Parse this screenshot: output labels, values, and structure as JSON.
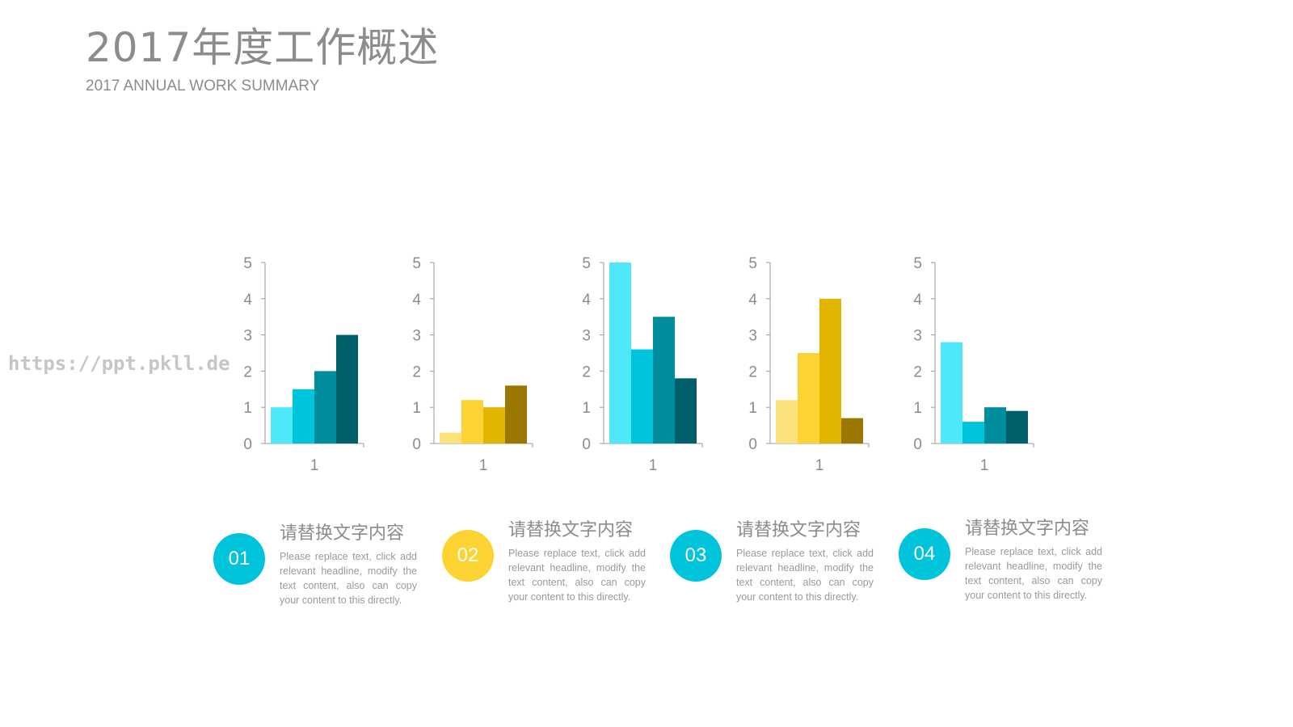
{
  "header": {
    "title": "2017年度工作概述",
    "subtitle": "2017 ANNUAL WORK SUMMARY"
  },
  "watermark": "https://ppt.pkll.de",
  "colors": {
    "cyan": [
      "#4ee8fa",
      "#00c3dc",
      "#008e9e",
      "#005f6b"
    ],
    "gold": [
      "#fde17a",
      "#fdd233",
      "#e2b600",
      "#9a7800"
    ],
    "text": "#8c8c8c",
    "axis": "#999999"
  },
  "chart_data": [
    {
      "type": "bar",
      "categories": [
        "1"
      ],
      "ylim": [
        0,
        5
      ],
      "yticks": [
        0,
        1,
        2,
        3,
        4,
        5
      ],
      "palette": "cyan",
      "series": [
        {
          "values": [
            1
          ]
        },
        {
          "values": [
            1.5
          ]
        },
        {
          "values": [
            2
          ]
        },
        {
          "values": [
            3
          ]
        }
      ]
    },
    {
      "type": "bar",
      "categories": [
        "1"
      ],
      "ylim": [
        0,
        5
      ],
      "yticks": [
        0,
        1,
        2,
        3,
        4,
        5
      ],
      "palette": "gold",
      "series": [
        {
          "values": [
            0.3
          ]
        },
        {
          "values": [
            1.2
          ]
        },
        {
          "values": [
            1
          ]
        },
        {
          "values": [
            1.6
          ]
        }
      ]
    },
    {
      "type": "bar",
      "categories": [
        "1"
      ],
      "ylim": [
        0,
        5
      ],
      "yticks": [
        0,
        1,
        2,
        3,
        4,
        5
      ],
      "palette": "cyan",
      "series": [
        {
          "values": [
            5
          ]
        },
        {
          "values": [
            2.6
          ]
        },
        {
          "values": [
            3.5
          ]
        },
        {
          "values": [
            1.8
          ]
        }
      ]
    },
    {
      "type": "bar",
      "categories": [
        "1"
      ],
      "ylim": [
        0,
        5
      ],
      "yticks": [
        0,
        1,
        2,
        3,
        4,
        5
      ],
      "palette": "gold",
      "series": [
        {
          "values": [
            1.2
          ]
        },
        {
          "values": [
            2.5
          ]
        },
        {
          "values": [
            4
          ]
        },
        {
          "values": [
            0.7
          ]
        }
      ]
    },
    {
      "type": "bar",
      "categories": [
        "1"
      ],
      "ylim": [
        0,
        5
      ],
      "yticks": [
        0,
        1,
        2,
        3,
        4,
        5
      ],
      "palette": "cyan",
      "series": [
        {
          "values": [
            2.8
          ]
        },
        {
          "values": [
            0.6
          ]
        },
        {
          "values": [
            1
          ]
        },
        {
          "values": [
            0.9
          ]
        }
      ]
    }
  ],
  "items": [
    {
      "number": "01",
      "color": "#00c3dc",
      "heading": "请替换文字内容",
      "body": "Please replace text, click add relevant headline, modify the text content, also can copy your content to this directly."
    },
    {
      "number": "02",
      "color": "#fdd233",
      "heading": "请替换文字内容",
      "body": "Please replace text, click add relevant headline, modify the text content, also can copy your content to this directly."
    },
    {
      "number": "03",
      "color": "#00c3dc",
      "heading": "请替换文字内容",
      "body": "Please replace text, click add relevant headline, modify the text content, also can copy your content to this directly."
    },
    {
      "number": "04",
      "color": "#00c3dc",
      "heading": "请替换文字内容",
      "body": "Please replace text, click add relevant headline, modify the text content, also can copy your content to this directly."
    }
  ]
}
